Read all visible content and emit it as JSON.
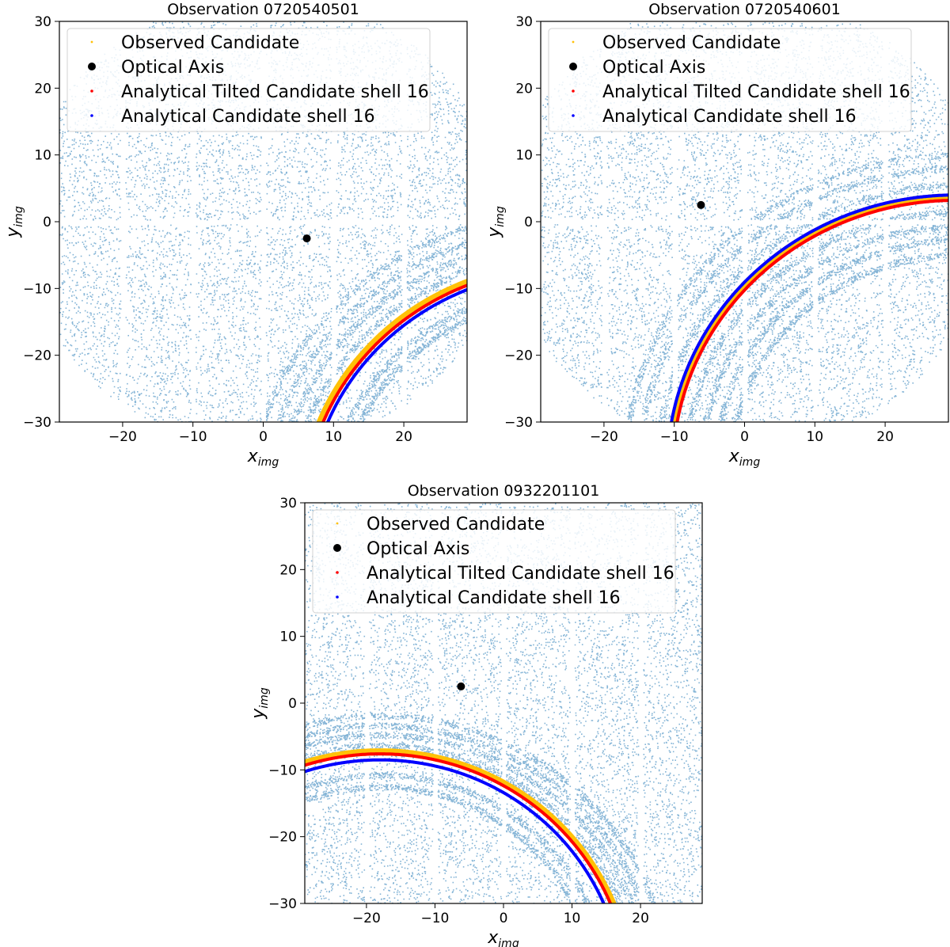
{
  "figure": {
    "colors": {
      "background_points": "#1f77b4",
      "observed": "#ffc107",
      "optical_axis": "#000000",
      "tilted": "#ff0000",
      "analytical": "#0000ff"
    }
  },
  "chart_data": [
    {
      "type": "scatter",
      "title": "Observation 0720540501",
      "xlabel": "x",
      "xlabel_sub": "img",
      "ylabel": "y",
      "ylabel_sub": "img",
      "xlim": [
        -29,
        29
      ],
      "ylim": [
        -30,
        30
      ],
      "xticks": [
        -20,
        -10,
        0,
        10,
        20
      ],
      "yticks": [
        -30,
        -20,
        -10,
        0,
        10,
        20,
        30
      ],
      "xtick_labels": [
        "−20",
        "−10",
        "0",
        "10",
        "20"
      ],
      "ytick_labels": [
        "−30",
        "−20",
        "−10",
        "0",
        "10",
        "20",
        "30"
      ],
      "legend_position": "top-left",
      "legend": [
        "Observed Candidate",
        "Optical Axis",
        "Analytical Tilted Candidate shell 16",
        "Analytical Candidate shell 16"
      ],
      "optical_axis": [
        6.2,
        -2.5
      ],
      "ring_center": [
        43.0,
        -44.0
      ],
      "observed_radius": 37.6,
      "tilted_radius": 37.2,
      "analytical_radius": 36.6,
      "background_ring_radii": [
        32.5,
        34.0,
        39.3,
        41.3,
        43.2,
        45.3
      ],
      "footprint_radius": 34.0,
      "chip_gaps_x": [
        -20,
        -10,
        0,
        10,
        20
      ],
      "chip_gaps_y": [
        0
      ]
    },
    {
      "type": "scatter",
      "title": "Observation 0720540601",
      "xlabel": "x",
      "xlabel_sub": "img",
      "ylabel": "y",
      "ylabel_sub": "img",
      "xlim": [
        -29,
        29
      ],
      "ylim": [
        -30,
        30
      ],
      "xticks": [
        -20,
        -10,
        0,
        10,
        20
      ],
      "yticks": [
        -30,
        -20,
        -10,
        0,
        10,
        20,
        30
      ],
      "xtick_labels": [
        "−20",
        "−10",
        "0",
        "10",
        "20"
      ],
      "ytick_labels": [
        "−30",
        "−20",
        "−10",
        "0",
        "10",
        "20",
        "30"
      ],
      "legend_position": "top-left",
      "legend": [
        "Observed Candidate",
        "Optical Axis",
        "Analytical Tilted Candidate shell 16",
        "Analytical Candidate shell 16"
      ],
      "optical_axis": [
        -6.2,
        2.5
      ],
      "ring_center": [
        30.0,
        -37.0
      ],
      "observed_radius": 40.7,
      "tilted_radius": 40.2,
      "analytical_radius": 41.0,
      "background_ring_radii": [
        32.0,
        34.2,
        36.3,
        38.5,
        42.5,
        45.0,
        47.0
      ],
      "footprint_radius": 34.0,
      "chip_gaps_x": [
        -20,
        -10,
        0,
        10,
        20
      ],
      "chip_gaps_y": [
        0
      ]
    },
    {
      "type": "scatter",
      "title": "Observation 0932201101",
      "xlabel": "x",
      "xlabel_sub": "img",
      "ylabel": "y",
      "ylabel_sub": "img",
      "xlim": [
        -29,
        29
      ],
      "ylim": [
        -30,
        30
      ],
      "xticks": [
        -20,
        -10,
        0,
        10,
        20
      ],
      "yticks": [
        -30,
        -20,
        -10,
        0,
        10,
        20,
        30
      ],
      "xtick_labels": [
        "−20",
        "−10",
        "0",
        "10",
        "20"
      ],
      "ytick_labels": [
        "−30",
        "−20",
        "−10",
        "0",
        "10",
        "20",
        "30"
      ],
      "legend_position": "top-left",
      "legend": [
        "Observed Candidate",
        "Optical Axis",
        "Analytical Tilted Candidate shell 16",
        "Analytical Candidate shell 16"
      ],
      "optical_axis": [
        -6.2,
        2.5
      ],
      "ring_center": [
        -18.0,
        -44.0
      ],
      "observed_radius": 36.7,
      "tilted_radius": 36.4,
      "analytical_radius": 35.5,
      "background_ring_radii": [
        31.5,
        33.3,
        37.7,
        39.3,
        40.7,
        42.2
      ],
      "footprint_radius": 44.0,
      "chip_gaps_x": [
        -20,
        -10,
        0,
        10,
        20
      ],
      "chip_gaps_y": []
    }
  ]
}
